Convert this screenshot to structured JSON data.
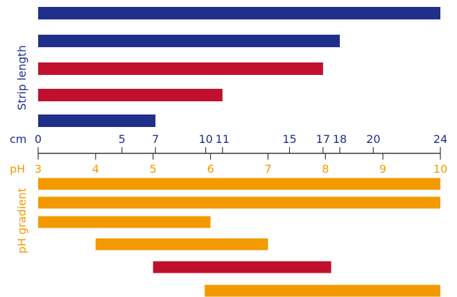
{
  "colors": {
    "blue": "#1f2f8a",
    "red": "#c0102e",
    "orange": "#f29a00",
    "axis": "#333333"
  },
  "chart_data": {
    "type": "bar",
    "strip_section": {
      "ylabel": "Strip length",
      "bars": [
        {
          "start_cm": 0,
          "end_cm": 24,
          "color": "blue"
        },
        {
          "start_cm": 0,
          "end_cm": 18,
          "color": "blue"
        },
        {
          "start_cm": 0,
          "end_cm": 17,
          "color": "red"
        },
        {
          "start_cm": 0,
          "end_cm": 11,
          "color": "red"
        },
        {
          "start_cm": 0,
          "end_cm": 7,
          "color": "blue"
        }
      ]
    },
    "cm_axis": {
      "label": "cm",
      "range": [
        0,
        24
      ],
      "ticks": [
        "0",
        "5",
        "7",
        "10",
        "11",
        "15",
        "17",
        "18",
        "20",
        "24"
      ]
    },
    "ph_axis": {
      "label": "pH",
      "range": [
        3,
        10
      ],
      "ticks": [
        "3",
        "4",
        "5",
        "6",
        "7",
        "8",
        "9",
        "10"
      ]
    },
    "ph_section": {
      "ylabel": "pH gradient",
      "bars": [
        {
          "start_ph": 3,
          "end_ph": 10,
          "color": "orange"
        },
        {
          "start_ph": 3,
          "end_ph": 10,
          "color": "orange"
        },
        {
          "start_ph": 3,
          "end_ph": 6,
          "color": "orange"
        },
        {
          "start_ph": 4,
          "end_ph": 7,
          "color": "orange"
        },
        {
          "start_ph": 5,
          "end_ph": 8.1,
          "color": "red"
        },
        {
          "start_ph": 5.9,
          "end_ph": 10,
          "color": "orange"
        }
      ]
    }
  }
}
